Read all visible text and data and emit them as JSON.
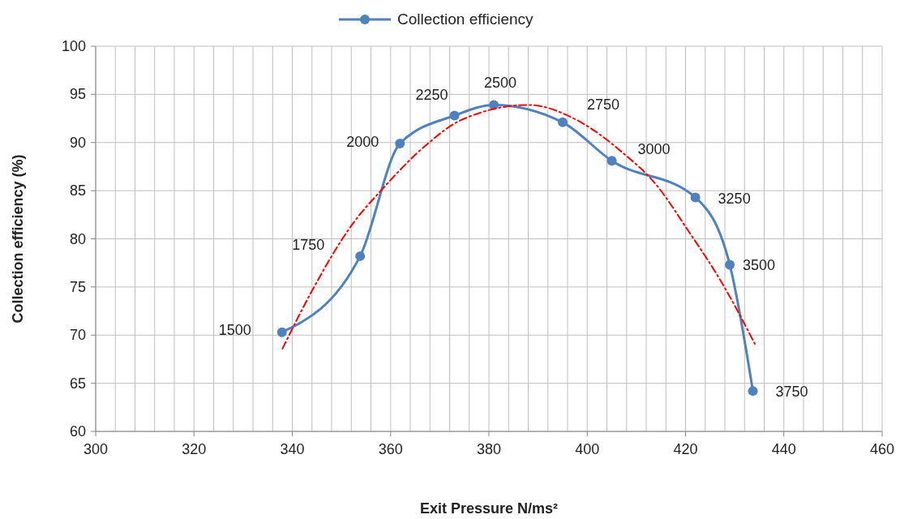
{
  "chart_data": {
    "type": "line",
    "xlabel": "Exit Pressure N/ms²",
    "ylabel": "Collection efficiency (%)",
    "xlim": [
      300,
      460
    ],
    "ylim": [
      60,
      100
    ],
    "xticks": [
      300,
      {
        "value": 304,
        "label": null
      },
      {
        "value": 308,
        "label": null
      },
      {
        "value": 312,
        "label": null
      },
      {
        "value": 316,
        "label": null
      },
      320,
      {
        "value": 324,
        "label": null
      },
      {
        "value": 328,
        "label": null
      },
      {
        "value": 332,
        "label": null
      },
      {
        "value": 336,
        "label": null
      },
      340,
      {
        "value": 344,
        "label": null
      },
      {
        "value": 348,
        "label": null
      },
      {
        "value": 352,
        "label": null
      },
      {
        "value": 356,
        "label": null
      },
      360,
      {
        "value": 364,
        "label": null
      },
      {
        "value": 368,
        "label": null
      },
      {
        "value": 372,
        "label": null
      },
      {
        "value": 376,
        "label": null
      },
      380,
      {
        "value": 384,
        "label": null
      },
      {
        "value": 388,
        "label": null
      },
      {
        "value": 392,
        "label": null
      },
      {
        "value": 396,
        "label": null
      },
      400,
      {
        "value": 404,
        "label": null
      },
      {
        "value": 408,
        "label": null
      },
      {
        "value": 412,
        "label": null
      },
      {
        "value": 416,
        "label": null
      },
      420,
      {
        "value": 424,
        "label": null
      },
      {
        "value": 428,
        "label": null
      },
      {
        "value": 432,
        "label": null
      },
      {
        "value": 436,
        "label": null
      },
      440,
      {
        "value": 444,
        "label": null
      },
      {
        "value": 448,
        "label": null
      },
      {
        "value": 452,
        "label": null
      },
      {
        "value": 456,
        "label": null
      },
      460
    ],
    "yticks": [
      60,
      65,
      70,
      75,
      80,
      85,
      90,
      95,
      100
    ],
    "grid": true,
    "legend": "top",
    "marker": "circle",
    "series": [
      {
        "name": "Collection efficiency",
        "color": "#4f81bd",
        "line_style": "solid",
        "x": [
          337.9,
          353.8,
          361.9,
          373.0,
          381.0,
          395.0,
          405.0,
          422.0,
          429.0,
          433.7
        ],
        "values": [
          70.3,
          78.2,
          89.9,
          92.8,
          93.9,
          92.1,
          88.1,
          84.3,
          77.3,
          64.2
        ]
      },
      {
        "color": "#ff0000",
        "marker": "none",
        "line_style": "dashed",
        "x": [
          338,
          343.9,
          352.2,
          358.2,
          367.6,
          374.2,
          388,
          398,
          407.3,
          413.9,
          420.6,
          427.2,
          434.1
        ],
        "values": [
          68.6,
          74.5,
          81.5,
          85.1,
          89.9,
          92.3,
          93.9,
          92.3,
          88.9,
          85.7,
          80.8,
          75.6,
          69.1
        ]
      }
    ],
    "annotations": [
      {
        "text": "1500",
        "x": 337.9,
        "y": 70.3
      },
      {
        "text": "1750",
        "x": 353.8,
        "y": 78.2
      },
      {
        "text": "2000",
        "x": 361.9,
        "y": 89.9
      },
      {
        "text": "2250",
        "x": 373.0,
        "y": 92.8
      },
      {
        "text": "2500",
        "x": 381.0,
        "y": 93.9
      },
      {
        "text": "2750",
        "x": 395.0,
        "y": 92.1
      },
      {
        "text": "3000",
        "x": 405.0,
        "y": 88.1
      },
      {
        "text": "3250",
        "x": 422.0,
        "y": 84.3
      },
      {
        "text": "3500",
        "x": 429.0,
        "y": 77.3
      },
      {
        "text": "3750",
        "x": 433.7,
        "y": 64.2
      }
    ]
  }
}
